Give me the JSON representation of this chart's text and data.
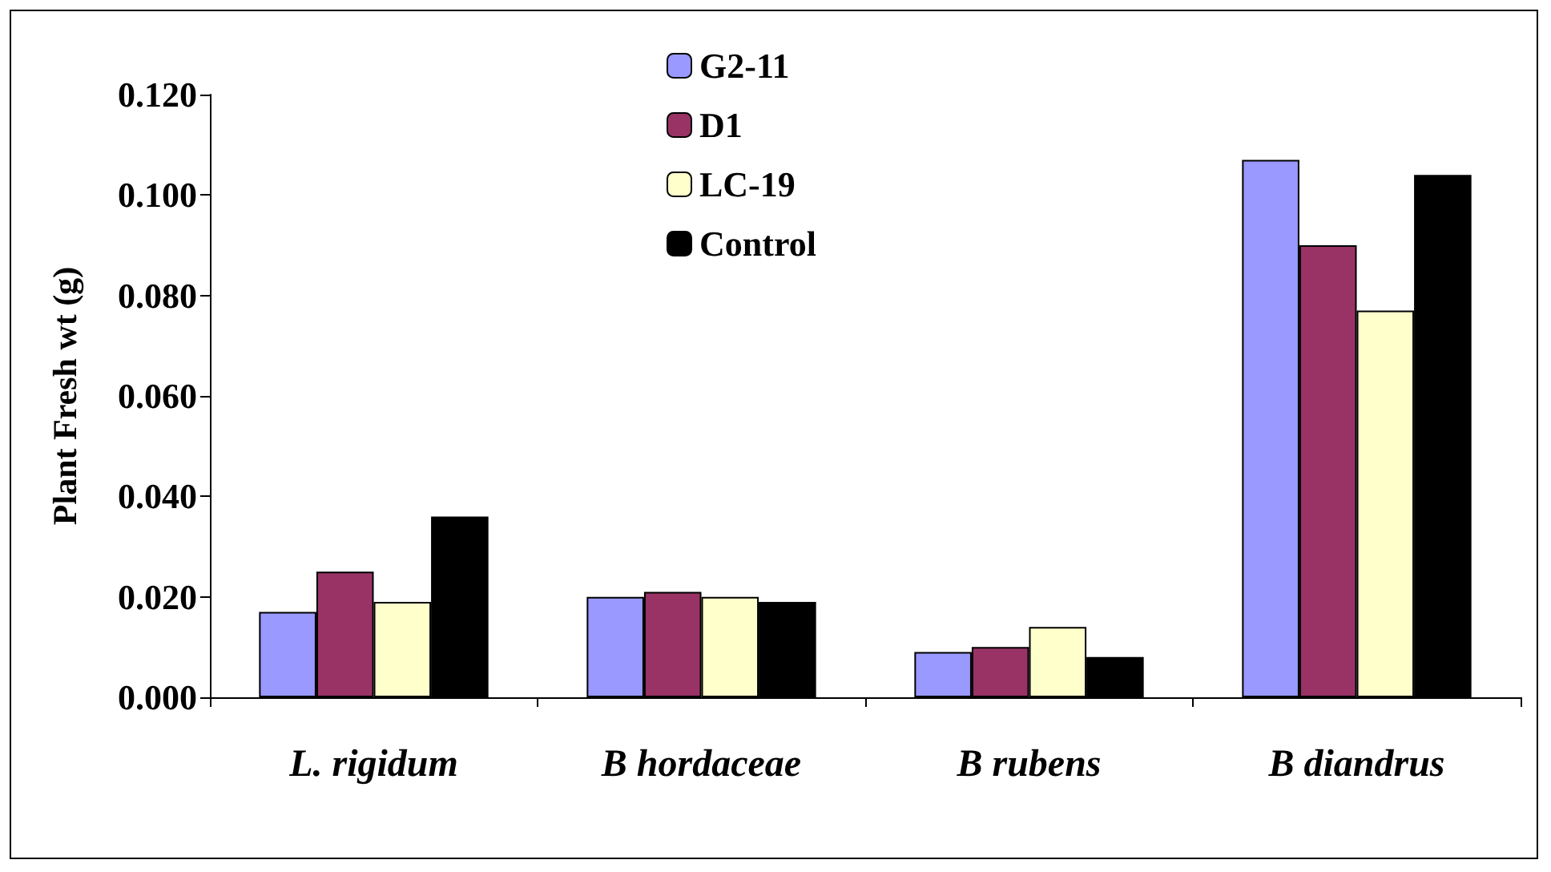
{
  "chart_data": {
    "type": "bar",
    "ylabel": "Plant Fresh wt (g)",
    "categories": [
      "L. rigidum",
      "B hordaceae",
      "B rubens",
      "B diandrus"
    ],
    "series": [
      {
        "name": "G2-11",
        "color": "#9999ff",
        "values": [
          0.017,
          0.02,
          0.009,
          0.107
        ]
      },
      {
        "name": "D1",
        "color": "#993366",
        "values": [
          0.025,
          0.021,
          0.01,
          0.09
        ]
      },
      {
        "name": "LC-19",
        "color": "#ffffcc",
        "values": [
          0.019,
          0.02,
          0.014,
          0.077
        ]
      },
      {
        "name": "Control",
        "color": "#000000",
        "values": [
          0.036,
          0.019,
          0.008,
          0.104
        ]
      }
    ],
    "ylim": [
      0,
      0.12
    ],
    "yticks": [
      {
        "value": 0,
        "label": "0.000"
      },
      {
        "value": 0.02,
        "label": "0.020"
      },
      {
        "value": 0.04,
        "label": "0.040"
      },
      {
        "value": 0.06,
        "label": "0.060"
      },
      {
        "value": 0.08,
        "label": "0.080"
      },
      {
        "value": 0.1,
        "label": "0.100"
      },
      {
        "value": 0.12,
        "label": "0.120"
      }
    ],
    "grid": false,
    "legend": "top"
  }
}
